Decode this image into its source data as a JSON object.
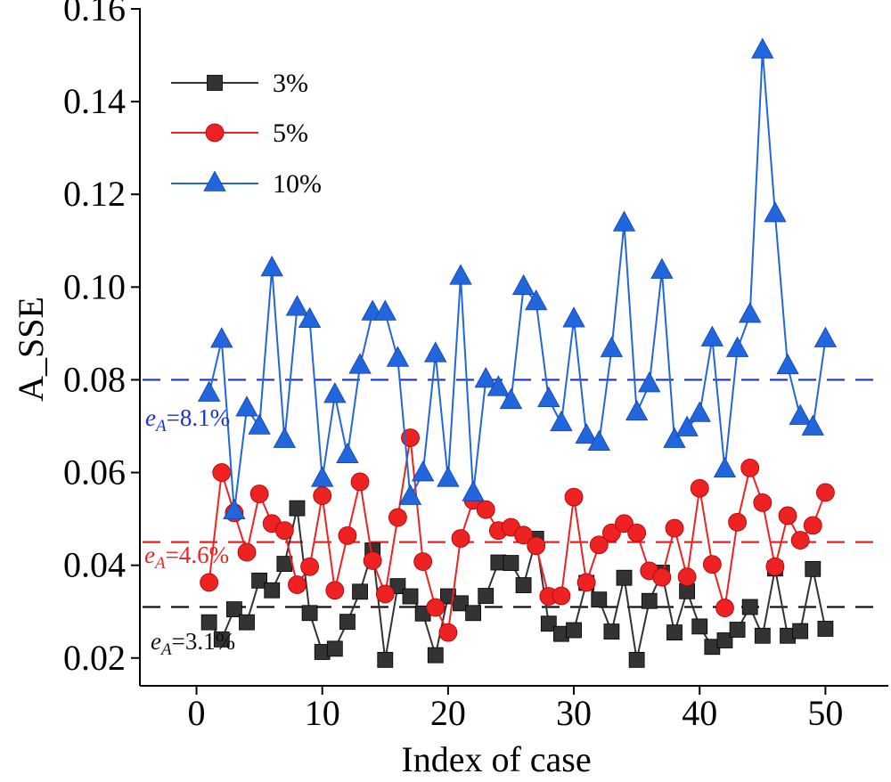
{
  "chart_data": {
    "type": "line",
    "xlabel": "Index of case",
    "ylabel": "A_SSE",
    "xlim": [
      -4.5,
      55
    ],
    "ylim": [
      0.014,
      0.16
    ],
    "x_ticks": [
      0,
      10,
      20,
      30,
      40,
      50
    ],
    "y_ticks": [
      0.02,
      0.04,
      0.06,
      0.08,
      0.1,
      0.12,
      0.14,
      0.16
    ],
    "y_tick_labels": [
      "0.02",
      "0.04",
      "0.06",
      "0.08",
      "0.10",
      "0.12",
      "0.14",
      "0.16"
    ],
    "legend_position": "top-left",
    "x": [
      1,
      2,
      3,
      4,
      5,
      6,
      7,
      8,
      9,
      10,
      11,
      12,
      13,
      14,
      15,
      16,
      17,
      18,
      19,
      20,
      21,
      22,
      23,
      24,
      25,
      26,
      27,
      28,
      29,
      30,
      31,
      32,
      33,
      34,
      35,
      36,
      37,
      38,
      39,
      40,
      41,
      42,
      43,
      44,
      45,
      46,
      47,
      48,
      49,
      50
    ],
    "series": [
      {
        "name": "3%",
        "color": "#333333",
        "marker": "square",
        "values": [
          0.0277,
          0.024,
          0.0305,
          0.0277,
          0.0367,
          0.0346,
          0.0403,
          0.0523,
          0.0297,
          0.0213,
          0.022,
          0.0278,
          0.0343,
          0.0432,
          0.0196,
          0.0355,
          0.0333,
          0.0296,
          0.0206,
          0.0333,
          0.0318,
          0.0297,
          0.0334,
          0.0406,
          0.0405,
          0.0357,
          0.0457,
          0.0274,
          0.0252,
          0.026,
          0.0362,
          0.0326,
          0.0257,
          0.0373,
          0.0196,
          0.0323,
          0.0384,
          0.0255,
          0.0344,
          0.0268,
          0.0224,
          0.0238,
          0.0261,
          0.031,
          0.0248,
          0.0393,
          0.0248,
          0.0258,
          0.0392,
          0.0263
        ]
      },
      {
        "name": "5%",
        "color": "#ee2222",
        "marker": "circle",
        "values": [
          0.0363,
          0.06,
          0.0513,
          0.0428,
          0.0554,
          0.049,
          0.0475,
          0.0358,
          0.0397,
          0.055,
          0.0346,
          0.0464,
          0.058,
          0.041,
          0.0338,
          0.0503,
          0.0675,
          0.0408,
          0.0309,
          0.0255,
          0.0458,
          0.054,
          0.052,
          0.0475,
          0.0482,
          0.0465,
          0.0442,
          0.0333,
          0.0334,
          0.0547,
          0.0363,
          0.0444,
          0.047,
          0.049,
          0.047,
          0.0388,
          0.0374,
          0.048,
          0.0375,
          0.0566,
          0.0402,
          0.0308,
          0.0493,
          0.061,
          0.0535,
          0.0397,
          0.0507,
          0.0454,
          0.0486,
          0.0557
        ]
      },
      {
        "name": "10%",
        "color": "#2266dd",
        "marker": "triangle",
        "values": [
          0.077,
          0.0886,
          0.0516,
          0.0738,
          0.0699,
          0.104,
          0.067,
          0.0955,
          0.0929,
          0.0586,
          0.0767,
          0.0637,
          0.083,
          0.0945,
          0.0945,
          0.0845,
          0.0547,
          0.0598,
          0.0855,
          0.0586,
          0.1022,
          0.0555,
          0.08,
          0.0782,
          0.0754,
          0.1,
          0.0967,
          0.0758,
          0.0706,
          0.093,
          0.0679,
          0.0664,
          0.0866,
          0.1137,
          0.0729,
          0.079,
          0.1035,
          0.067,
          0.0695,
          0.0726,
          0.0889,
          0.0606,
          0.0866,
          0.094,
          0.151,
          0.1157,
          0.0829,
          0.072,
          0.0697,
          0.0887
        ]
      }
    ],
    "reference_lines": [
      {
        "y": 0.08,
        "color": "#1a33cc",
        "label_prefix": "e",
        "label_sub": "A",
        "label_value": "=8.1%"
      },
      {
        "y": 0.045,
        "color": "#ee2222",
        "label_prefix": "e",
        "label_sub": "A",
        "label_value": "=4.6%"
      },
      {
        "y": 0.031,
        "color": "#111111",
        "label_prefix": "e",
        "label_sub": "A",
        "label_value": "=3.1%"
      }
    ]
  }
}
